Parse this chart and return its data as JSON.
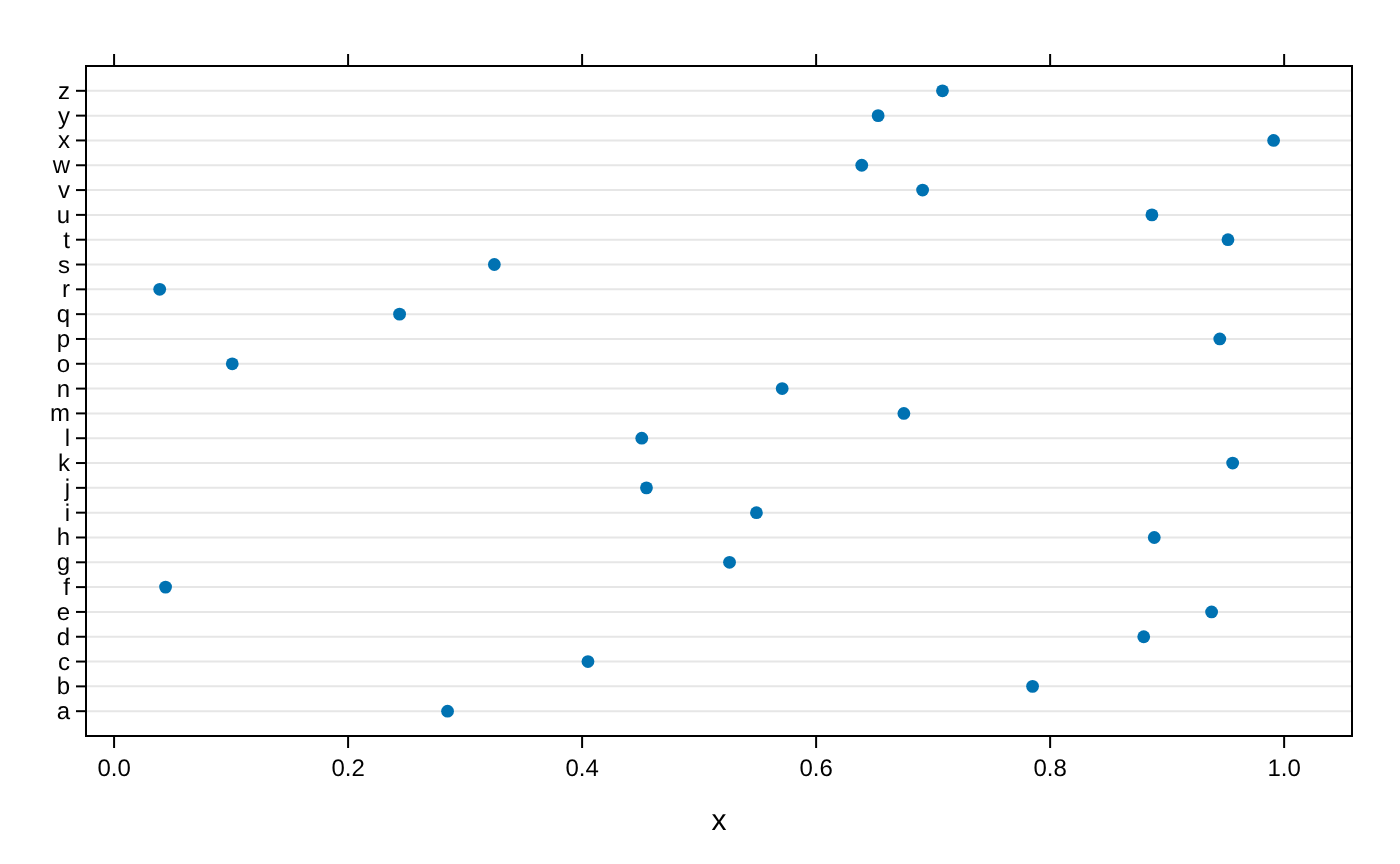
{
  "chart_data": {
    "type": "scatter",
    "orientation": "horizontal",
    "xlabel": "x",
    "categories": [
      "z",
      "y",
      "x",
      "w",
      "v",
      "u",
      "t",
      "s",
      "r",
      "q",
      "p",
      "o",
      "n",
      "m",
      "l",
      "k",
      "j",
      "i",
      "h",
      "g",
      "f",
      "e",
      "d",
      "c",
      "b",
      "a"
    ],
    "values": [
      0.708,
      0.653,
      0.991,
      0.639,
      0.691,
      0.887,
      0.952,
      0.325,
      0.039,
      0.244,
      0.945,
      0.101,
      0.571,
      0.675,
      0.451,
      0.956,
      0.455,
      0.549,
      0.889,
      0.526,
      0.044,
      0.938,
      0.88,
      0.405,
      0.785,
      0.285
    ],
    "color": "#0072b2",
    "marker": "circle",
    "grid": "y",
    "xlim": [
      -0.024,
      1.058
    ],
    "xticks": [
      {
        "value": 0,
        "label": "0.0"
      },
      0.2,
      0.4,
      0.6,
      0.8,
      {
        "value": 1,
        "label": "1.0"
      }
    ]
  }
}
